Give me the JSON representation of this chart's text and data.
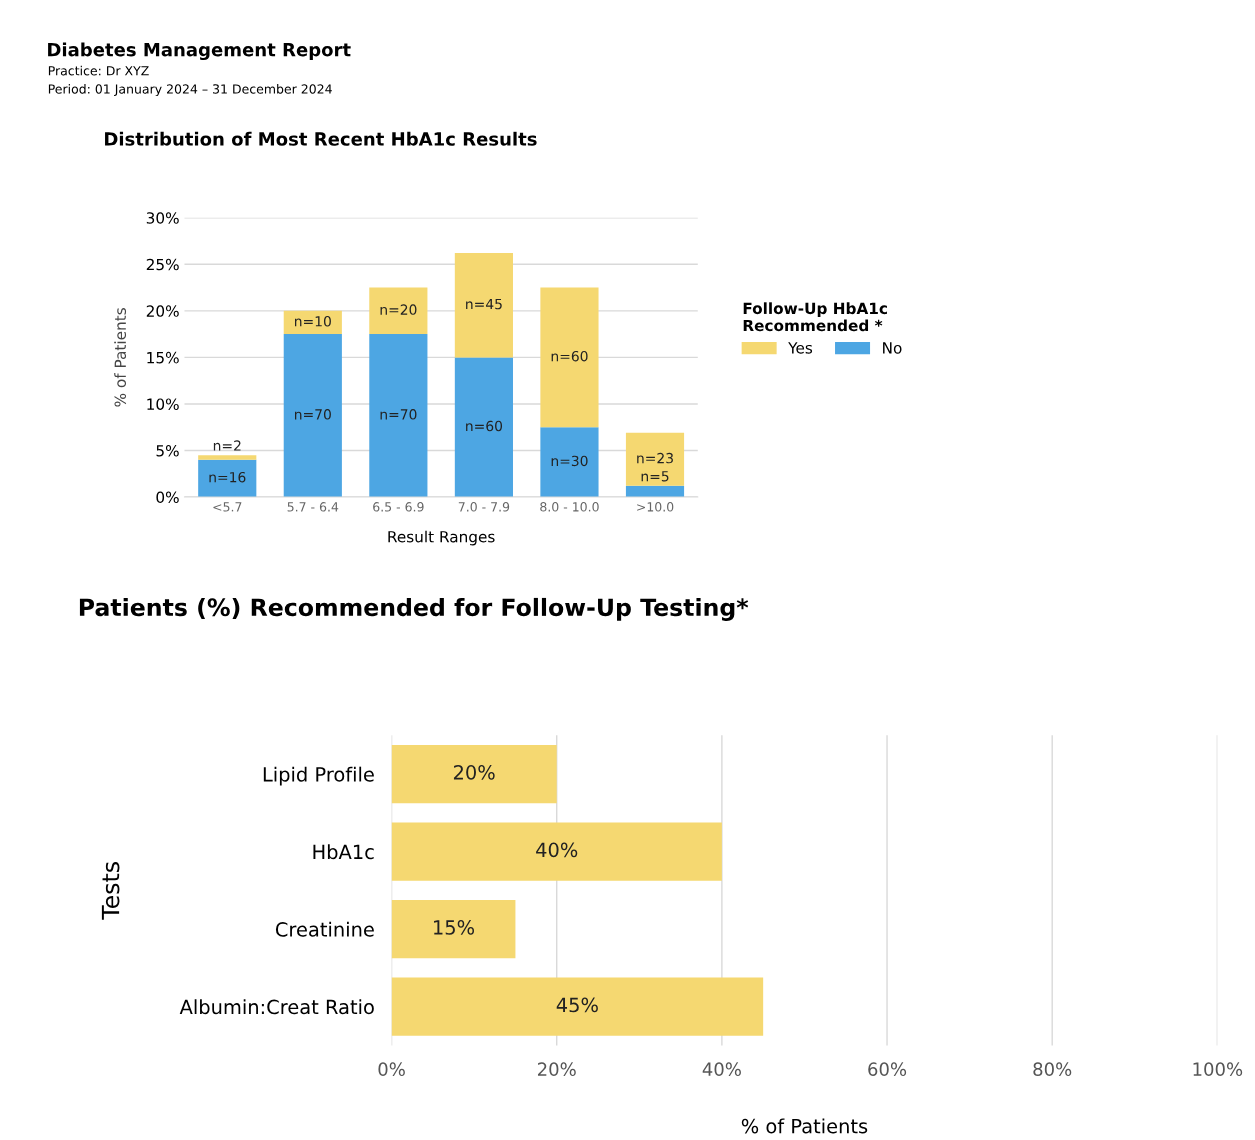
{
  "chart_data": [
    {
      "type": "bar",
      "title": "Distribution of Most Recent HbA1c Results",
      "xlabel": "Result Ranges",
      "ylabel": "% of Patients",
      "legend_title": "Follow-Up HbA1c\nRecommended *",
      "annotations": [
        "Diabetes Management Report",
        "Practice: Dr XYZ",
        "Period: 01 January 2024 – 31 December 2024",
        "n=16",
        "n=70",
        "n=70",
        "n=60",
        "n=30",
        "n=5",
        "n=2",
        "n=10",
        "n=20",
        "n=45",
        "n=60",
        "n=23"
      ],
      "categories": [
        "<5.7",
        "5.7 - 6.4",
        "6.5 - 6.9",
        "7.0 - 7.9",
        "8.0 - 10.0",
        ">10.0"
      ],
      "stacked": true,
      "series": [
        {
          "name": "No",
          "color": "#4da6e3",
          "values": [
            4.0,
            17.5,
            17.5,
            15.0,
            7.5,
            1.2
          ]
        },
        {
          "name": "Yes",
          "color": "#f5d871",
          "values": [
            0.5,
            2.5,
            5.0,
            11.2,
            15.0,
            5.7
          ]
        }
      ],
      "ylim": [
        0,
        30
      ],
      "yticks": [
        {
          "value": 0,
          "label": "0%"
        },
        {
          "value": 5,
          "label": "5%"
        },
        {
          "value": 10,
          "label": "10%"
        },
        {
          "value": 15,
          "label": "15%"
        },
        {
          "value": 20,
          "label": "20%"
        },
        {
          "value": 25,
          "label": "25%"
        },
        {
          "value": 30,
          "label": "30%"
        }
      ],
      "grid": "y",
      "legend": "right"
    },
    {
      "type": "bar",
      "orientation": "horizontal",
      "title": "Patients (%) Recommended for Follow-Up Testing*",
      "xlabel": "% of Patients",
      "ylabel": "Tests",
      "categories": [
        "Lipid Profile",
        "HbA1c",
        "Creatinine",
        "Albumin:Creat Ratio"
      ],
      "series": [
        {
          "color": "#f5d871",
          "values": [
            20,
            40,
            15,
            45
          ],
          "value_labels": [
            "20%",
            "40%",
            "15%",
            "45%"
          ]
        }
      ],
      "xlim": [
        0,
        100
      ],
      "xticks": [
        {
          "value": 0,
          "label": "0%"
        },
        {
          "value": 20,
          "label": "20%"
        },
        {
          "value": 40,
          "label": "40%"
        },
        {
          "value": 60,
          "label": "60%"
        },
        {
          "value": 80,
          "label": "80%"
        },
        {
          "value": 100,
          "label": "100%"
        }
      ],
      "grid": "x"
    }
  ]
}
